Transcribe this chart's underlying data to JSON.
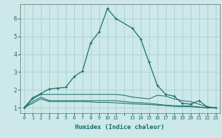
{
  "xlabel": "Humidex (Indice chaleur)",
  "background_color": "#cce8e8",
  "grid_color": "#aacece",
  "line_color": "#1a6b6b",
  "ylim": [
    0.7,
    6.8
  ],
  "xlim": [
    -0.5,
    23.5
  ],
  "y_ticks": [
    1,
    2,
    3,
    4,
    5,
    6
  ],
  "x_positions": [
    0,
    1,
    2,
    3,
    4,
    5,
    6,
    7,
    8,
    9,
    10,
    11,
    12,
    13,
    14,
    15,
    16,
    17,
    18,
    19,
    20,
    21,
    22,
    23
  ],
  "x_tick_labels": [
    "0",
    "1",
    "2",
    "3",
    "4",
    "5",
    "6",
    "7",
    "8",
    "9",
    "10",
    "11",
    "",
    "13",
    "14",
    "15",
    "16",
    "17",
    "18",
    "19",
    "20",
    "21",
    "22",
    "23"
  ],
  "series1_x": [
    0,
    1,
    2,
    3,
    4,
    5,
    6,
    7,
    8,
    9,
    10,
    11,
    13,
    14,
    15,
    16,
    17,
    18,
    19,
    20,
    21,
    22,
    23
  ],
  "series1_y": [
    1.0,
    1.55,
    1.8,
    2.05,
    2.1,
    2.15,
    2.75,
    3.05,
    4.65,
    5.25,
    6.55,
    6.0,
    5.45,
    4.85,
    3.55,
    2.25,
    1.75,
    1.65,
    1.25,
    1.2,
    1.4,
    1.05,
    1.0
  ],
  "series2_x": [
    0,
    1,
    2,
    3,
    4,
    5,
    6,
    7,
    8,
    9,
    10,
    11,
    12,
    13,
    14,
    15,
    16,
    17,
    18,
    19,
    20,
    21,
    22,
    23
  ],
  "series2_y": [
    1.0,
    1.5,
    1.75,
    1.75,
    1.75,
    1.75,
    1.75,
    1.75,
    1.75,
    1.75,
    1.75,
    1.75,
    1.7,
    1.6,
    1.55,
    1.5,
    1.7,
    1.65,
    1.5,
    1.4,
    1.35,
    1.2,
    1.05,
    1.0
  ],
  "series3_x": [
    0,
    1,
    2,
    3,
    4,
    5,
    6,
    7,
    8,
    9,
    10,
    11,
    12,
    13,
    14,
    15,
    16,
    17,
    18,
    19,
    20,
    21,
    22,
    23
  ],
  "series3_y": [
    1.0,
    1.35,
    1.6,
    1.4,
    1.4,
    1.4,
    1.4,
    1.4,
    1.4,
    1.4,
    1.4,
    1.4,
    1.35,
    1.3,
    1.28,
    1.25,
    1.2,
    1.15,
    1.12,
    1.1,
    1.1,
    1.05,
    1.0,
    1.0
  ],
  "series4_x": [
    0,
    1,
    2,
    3,
    4,
    5,
    6,
    7,
    8,
    9,
    10,
    11,
    12,
    13,
    14,
    15,
    16,
    17,
    18,
    19,
    20,
    21,
    22,
    23
  ],
  "series4_y": [
    1.0,
    1.25,
    1.5,
    1.35,
    1.35,
    1.35,
    1.35,
    1.35,
    1.33,
    1.3,
    1.3,
    1.28,
    1.25,
    1.22,
    1.2,
    1.18,
    1.15,
    1.12,
    1.08,
    1.07,
    1.06,
    1.03,
    1.0,
    1.0
  ]
}
